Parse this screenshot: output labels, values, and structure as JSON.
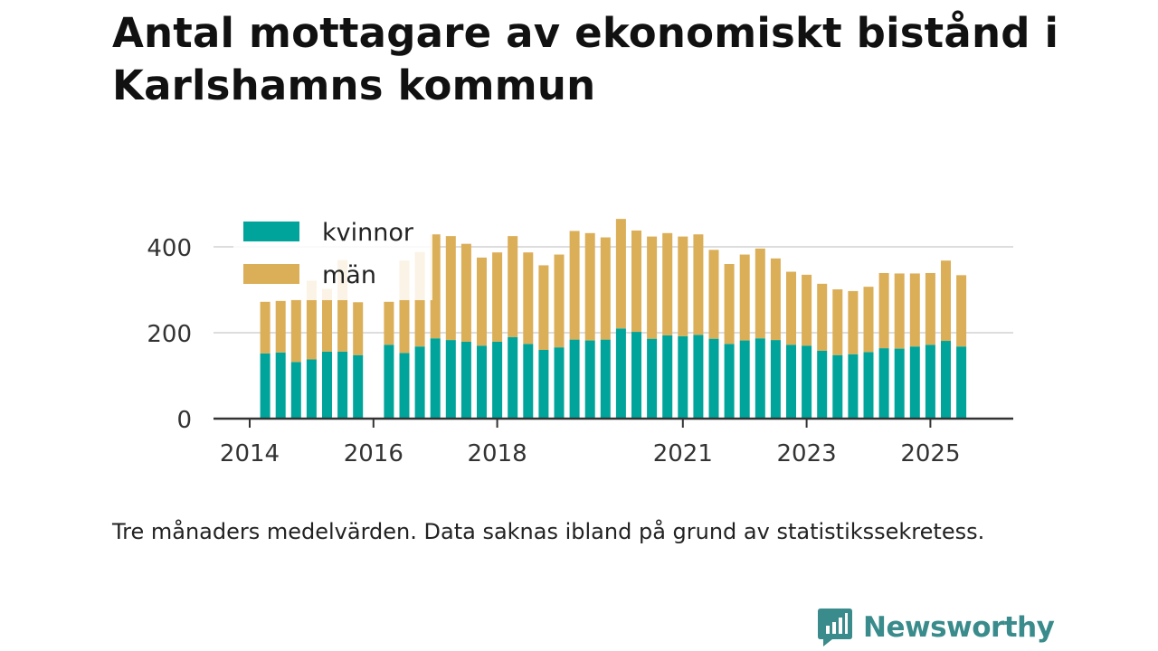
{
  "title": "Antal mottagare av ekonomiskt bistånd i Karlshamns kommun",
  "caption": "Tre månaders medelvärden. Data saknas ibland på grund av statistikssekretess.",
  "brand": "Newsworthy",
  "colors": {
    "kvinnor": "#00a49a",
    "man": "#dbae58",
    "axis": "#333333",
    "grid": "#dddddd",
    "brand": "#3a8b8c"
  },
  "chart_data": {
    "type": "bar",
    "stacked": true,
    "title": "Antal mottagare av ekonomiskt bistånd i Karlshamns kommun",
    "xlabel": "",
    "ylabel": "",
    "ylim": [
      0,
      480
    ],
    "yticks": [
      0,
      200,
      400
    ],
    "grid": true,
    "legend_position": "top-left",
    "xlim": [
      2014.0,
      2026.25
    ],
    "xticks": [
      {
        "value": 2014.0,
        "label": "2014"
      },
      {
        "value": 2016.0,
        "label": "2016"
      },
      {
        "value": 2018.0,
        "label": "2018"
      },
      {
        "value": 2021.0,
        "label": "2021"
      },
      {
        "value": 2023.0,
        "label": "2023"
      },
      {
        "value": 2025.0,
        "label": "2025"
      }
    ],
    "x": [
      2014.25,
      2014.5,
      2014.75,
      2015.0,
      2015.25,
      2015.5,
      2015.75,
      2016.25,
      2016.5,
      2016.75,
      2017.0,
      2017.25,
      2017.5,
      2017.75,
      2018.0,
      2018.25,
      2018.5,
      2018.75,
      2019.0,
      2019.25,
      2019.5,
      2019.75,
      2020.0,
      2020.25,
      2020.5,
      2020.75,
      2021.0,
      2021.25,
      2021.5,
      2021.75,
      2022.0,
      2022.25,
      2022.5,
      2022.75,
      2023.0,
      2023.25,
      2023.5,
      2023.75,
      2024.0,
      2024.25,
      2024.5,
      2024.75,
      2025.0,
      2025.25,
      2025.5
    ],
    "series": [
      {
        "name": "kvinnor",
        "values": [
          152,
          154,
          132,
          138,
          156,
          156,
          148,
          172,
          153,
          168,
          187,
          183,
          179,
          170,
          179,
          190,
          174,
          160,
          166,
          184,
          182,
          184,
          210,
          202,
          186,
          194,
          192,
          195,
          186,
          174,
          182,
          187,
          183,
          172,
          170,
          158,
          148,
          150,
          155,
          164,
          163,
          168,
          172,
          181,
          168
        ]
      },
      {
        "name": "män",
        "values": [
          120,
          120,
          145,
          183,
          146,
          213,
          123,
          100,
          215,
          220,
          242,
          242,
          228,
          205,
          208,
          235,
          213,
          197,
          216,
          253,
          250,
          238,
          255,
          236,
          238,
          238,
          232,
          234,
          207,
          186,
          200,
          209,
          190,
          170,
          165,
          156,
          153,
          147,
          152,
          175,
          175,
          170,
          167,
          187,
          166
        ]
      }
    ]
  }
}
